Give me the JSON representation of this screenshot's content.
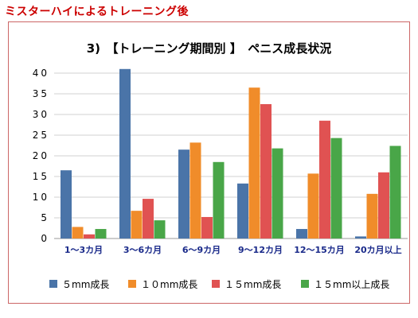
{
  "header": "ミスターハイによるトレーニング後",
  "chart_data": {
    "type": "bar",
    "title": "3)　【トレーニング期間別 】　ペニス成長状況",
    "categories": [
      "1～3カ月",
      "3～6カ月",
      "6～9カ月",
      "9～12カ月",
      "12～15カ月",
      "20カ月以上"
    ],
    "series": [
      {
        "name": "５mm成長",
        "color": "#4a74a8",
        "values": [
          16.5,
          41,
          21.5,
          13.3,
          2.3,
          0.5
        ]
      },
      {
        "name": "１０mm成長",
        "color": "#f08c2a",
        "values": [
          2.8,
          6.7,
          23.2,
          36.5,
          15.7,
          10.8
        ]
      },
      {
        "name": "１５mm成長",
        "color": "#e05252",
        "values": [
          1.0,
          9.6,
          5.2,
          32.5,
          28.5,
          16.0
        ]
      },
      {
        "name": "１５mm以上成長",
        "color": "#49a648",
        "values": [
          2.3,
          4.4,
          18.5,
          21.8,
          24.3,
          22.4
        ]
      }
    ],
    "ylim": [
      0,
      40
    ],
    "yticks": [
      "0",
      "5",
      "10",
      "15",
      "20",
      "25",
      "30",
      "35",
      "40"
    ],
    "grid": true,
    "legend_position": "bottom"
  }
}
